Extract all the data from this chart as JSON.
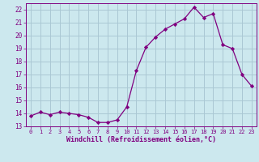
{
  "x": [
    0,
    1,
    2,
    3,
    4,
    5,
    6,
    7,
    8,
    9,
    10,
    11,
    12,
    13,
    14,
    15,
    16,
    17,
    18,
    19,
    20,
    21,
    22,
    23
  ],
  "y": [
    13.8,
    14.1,
    13.9,
    14.1,
    14.0,
    13.9,
    13.7,
    13.3,
    13.3,
    13.5,
    14.5,
    17.3,
    19.1,
    19.9,
    20.5,
    20.9,
    21.3,
    22.2,
    21.4,
    21.7,
    19.3,
    19.0,
    17.0,
    16.1
  ],
  "xlim": [
    -0.5,
    23.5
  ],
  "ylim": [
    13,
    22.5
  ],
  "yticks": [
    13,
    14,
    15,
    16,
    17,
    18,
    19,
    20,
    21,
    22
  ],
  "xticks": [
    0,
    1,
    2,
    3,
    4,
    5,
    6,
    7,
    8,
    9,
    10,
    11,
    12,
    13,
    14,
    15,
    16,
    17,
    18,
    19,
    20,
    21,
    22,
    23
  ],
  "xlabel": "Windchill (Refroidissement éolien,°C)",
  "line_color": "#800080",
  "marker": "D",
  "marker_size": 2.2,
  "bg_color": "#cce8ee",
  "grid_color": "#aac8d4",
  "tick_color": "#800080",
  "label_color": "#800080",
  "font_family": "monospace"
}
